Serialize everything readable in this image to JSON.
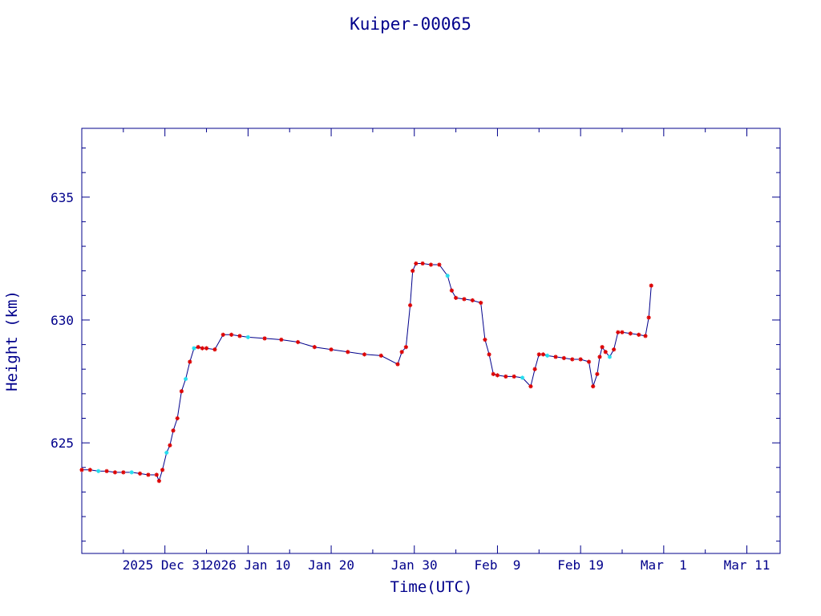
{
  "chart_data": {
    "type": "line",
    "title": "Kuiper-00065",
    "xlabel": "Time(UTC)",
    "ylabel": "Height (km)",
    "x_tick_labels": [
      "2025 Dec 31",
      "2026 Jan 10",
      "Jan 20",
      "Jan 30",
      "Feb  9",
      "Feb 19",
      "Mar  1",
      "Mar 11"
    ],
    "x_tick_days": [
      0,
      10,
      20,
      30,
      40,
      50,
      60,
      70
    ],
    "xlim_days": [
      -10,
      74
    ],
    "y_ticks": [
      625,
      630,
      635
    ],
    "ylim": [
      620.5,
      637.8
    ],
    "grid": false,
    "line_color": "#00008b",
    "marker_colors": {
      "primary": "#dd0000",
      "secondary": "#22ddee"
    },
    "series": [
      {
        "x": [
          -10,
          -9,
          -8,
          -7,
          -6,
          -5,
          -4,
          -3,
          -2,
          -1,
          -0.7,
          -0.3,
          0.2,
          0.6,
          1,
          1.5,
          2,
          2.5,
          3,
          3.5,
          4,
          4.5,
          5,
          6,
          7,
          8,
          9,
          10,
          12,
          14,
          16,
          18,
          20,
          22,
          24,
          26,
          28,
          28.5,
          29,
          29.5,
          29.8,
          30.2,
          31,
          32,
          33,
          34,
          34.5,
          35,
          36,
          37,
          38,
          38.5,
          39,
          39.5,
          40,
          41,
          42,
          43,
          44,
          44.5,
          45,
          45.5,
          46,
          47,
          48,
          49,
          50,
          51,
          51.5,
          52,
          52.3,
          52.6,
          53,
          53.5,
          54,
          54.5,
          55,
          56,
          57,
          57.8,
          58.2,
          58.5
        ],
        "y": [
          623.9,
          623.9,
          623.85,
          623.85,
          623.8,
          623.8,
          623.8,
          623.75,
          623.7,
          623.7,
          623.45,
          623.9,
          624.6,
          624.9,
          625.5,
          626.0,
          627.1,
          627.6,
          628.3,
          628.85,
          628.9,
          628.85,
          628.85,
          628.8,
          629.4,
          629.4,
          629.35,
          629.3,
          629.25,
          629.2,
          629.1,
          628.9,
          628.8,
          628.7,
          628.6,
          628.55,
          628.2,
          628.7,
          628.9,
          630.6,
          632.0,
          632.3,
          632.3,
          632.25,
          632.25,
          631.8,
          631.2,
          630.9,
          630.85,
          630.8,
          630.7,
          629.2,
          628.6,
          627.8,
          627.75,
          627.7,
          627.7,
          627.65,
          627.3,
          628.0,
          628.6,
          628.6,
          628.55,
          628.5,
          628.45,
          628.4,
          628.4,
          628.3,
          627.3,
          627.8,
          628.5,
          628.9,
          628.7,
          628.5,
          628.8,
          629.5,
          629.5,
          629.45,
          629.4,
          629.35,
          630.1,
          631.4
        ],
        "marker_pattern": [
          "primary",
          "primary",
          "secondary",
          "primary",
          "primary",
          "primary",
          "secondary",
          "primary",
          "primary",
          "primary",
          "primary",
          "primary",
          "secondary",
          "primary",
          "primary",
          "primary",
          "primary",
          "secondary",
          "primary",
          "secondary",
          "primary",
          "primary",
          "primary",
          "primary",
          "primary",
          "primary",
          "primary",
          "secondary",
          "primary",
          "primary",
          "primary",
          "primary",
          "primary",
          "primary",
          "primary",
          "primary",
          "primary",
          "primary",
          "primary",
          "primary",
          "primary",
          "primary",
          "primary",
          "primary",
          "primary",
          "secondary",
          "primary",
          "primary",
          "primary",
          "primary",
          "primary",
          "primary",
          "primary",
          "primary",
          "primary",
          "primary",
          "primary",
          "secondary",
          "primary",
          "primary",
          "primary",
          "primary",
          "secondary",
          "primary",
          "primary",
          "primary",
          "primary",
          "primary",
          "primary",
          "primary",
          "primary",
          "primary",
          "primary",
          "secondary",
          "primary",
          "primary",
          "primary",
          "primary",
          "primary",
          "primary",
          "primary",
          "primary"
        ]
      }
    ]
  }
}
